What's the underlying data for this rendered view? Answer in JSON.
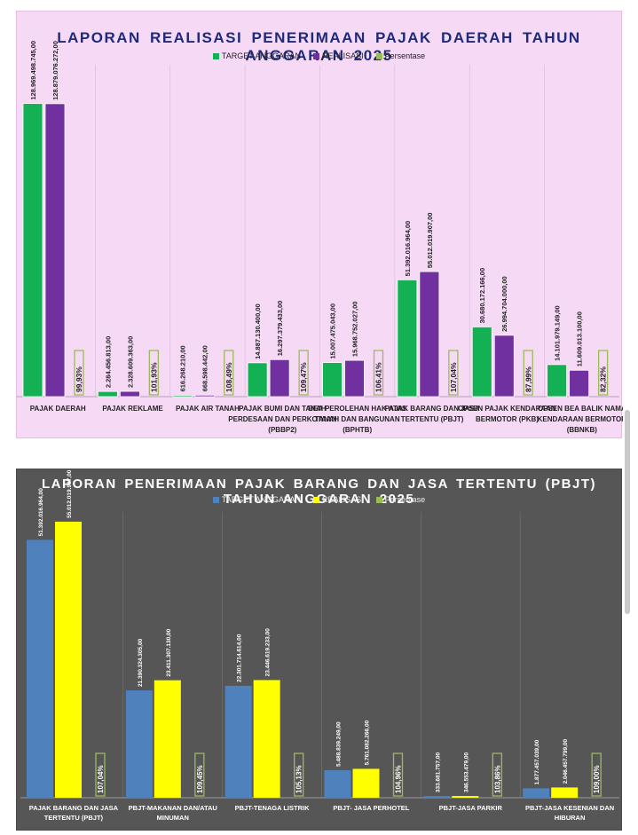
{
  "chart_data": [
    {
      "type": "bar",
      "title": "LAPORAN REALISASI PENERIMAAN PAJAK DAERAH TAHUN ANGGARAN 2025",
      "legend": [
        "TARGET ANGGARAN",
        "REALISASI",
        "Persentase"
      ],
      "categories": [
        "PAJAK DAERAH",
        "PAJAK REKLAME",
        "PAJAK AIR TANAH",
        "PAJAK BUMI DAN TANAH PERDESAAN DAN PERKOTAAN (PBBP2)",
        "BEA PEROLEHAN HAK ATAS TANAH DAN BANGUNAN (BPHTB)",
        "PAJAK BARANG DAN JASA TERTENTU (PBJT)",
        "OPSEN PAJAK KENDARAAN BERMOTOR (PKB)",
        "OPSEN BEA BALIK NAMA KENDARAAN BERMOTOR (BBNKB)"
      ],
      "series": [
        {
          "name": "TARGET ANGGARAN",
          "color": "#13b153",
          "values": [
            128969498745,
            2284456813,
            616268210,
            14887130400,
            15007475043,
            51392016964,
            30680172166,
            14101979149
          ],
          "labels": [
            "128.969.498.745,00",
            "2.284.456.813,00",
            "616.268.210,00",
            "14.887.130.400,00",
            "15.007.475.043,00",
            "51.392.016.964,00",
            "30.680.172.166,00",
            "14.101.979.149,00"
          ]
        },
        {
          "name": "REALISASI",
          "color": "#7030a0",
          "values": [
            128879076272,
            2328609363,
            668598442,
            16297379433,
            15968752027,
            55012019907,
            26994704000,
            11609013100
          ],
          "labels": [
            "128.879.076.272,00",
            "2.328.609.363,00",
            "668.598.442,00",
            "16.297.379.433,00",
            "15.968.752.027,00",
            "55.012.019.907,00",
            "26.994.704.000,00",
            "11.609.013.100,00"
          ]
        }
      ],
      "percent_labels": [
        "99,93%",
        "101,93%",
        "108,49%",
        "109,47%",
        "106,41%",
        "107,04%",
        "87,99%",
        "82,32%"
      ],
      "ylim": [
        0,
        130000000000
      ]
    },
    {
      "type": "bar",
      "title": "LAPORAN PENERIMAAN PAJAK BARANG DAN JASA TERTENTU (PBJT) TAHUN  ANGGARAN  2025",
      "legend": [
        "TARGET ANGGARAN",
        "REALISASI",
        "Persentase"
      ],
      "categories": [
        "PAJAK BARANG DAN JASA TERTENTU (PBJT)",
        "PBJT-MAKANAN DAN/ATAU MINUMAN",
        "PBJT-TENAGA LISTRIK",
        "PBJT- JASA PERHOTEL",
        "PBJT-JASA PARKIR",
        "PBJT-JASA KESENIAN DAN HIBURAN"
      ],
      "series": [
        {
          "name": "TARGET ANGGARAN",
          "color": "#4f81bd",
          "values": [
            51392016964,
            21390324305,
            22301714614,
            5488839249,
            333681757,
            1877457039
          ],
          "labels": [
            "51.392.016.964,00",
            "21.390.324.305,00",
            "22.301.714.614,00",
            "5.488.839.249,00",
            "333.681.757,00",
            "1.877.457.039,00"
          ]
        },
        {
          "name": "REALISASI",
          "color": "#ffff00",
          "values": [
            55012019907,
            23411307130,
            23446619233,
            5761082266,
            346553479,
            2046457799
          ],
          "labels": [
            "55.012.019.907,00",
            "23.411.307.130,00",
            "23.446.619.233,00",
            "5.761.082.266,00",
            "346.553.479,00",
            "2.046.457.799,00"
          ]
        }
      ],
      "percent_labels": [
        "107,04%",
        "109,45%",
        "105,13%",
        "104,96%",
        "103,86%",
        "109,00%"
      ],
      "ylim": [
        0,
        58000000000
      ]
    }
  ],
  "legend_colors": {
    "chart1": [
      "#13b153",
      "#7030a0",
      "#9bbb59"
    ],
    "chart2": [
      "#4f81bd",
      "#ffff00",
      "#9bbb59"
    ]
  }
}
